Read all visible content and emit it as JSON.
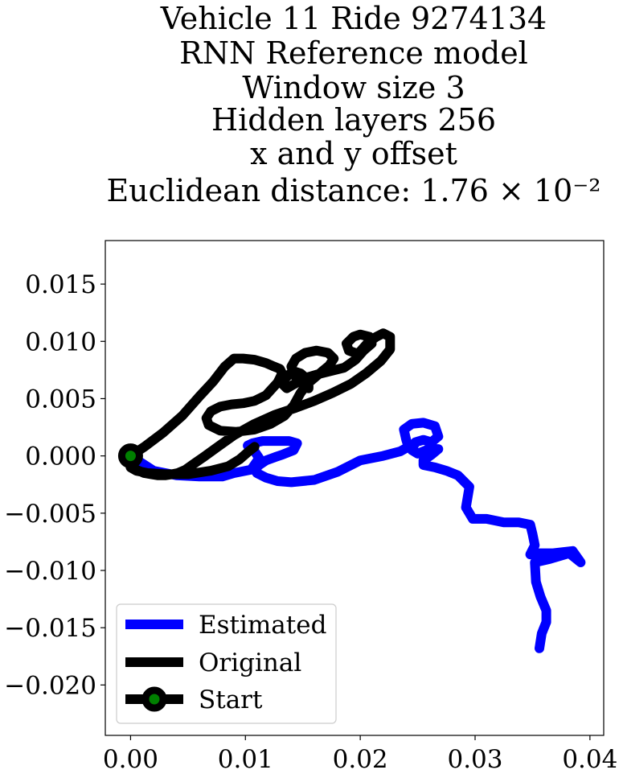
{
  "chart_data": {
    "type": "line",
    "title_lines": [
      "Vehicle 11 Ride 9274134",
      "RNN Reference model",
      "Window size 3",
      "Hidden layers 256",
      "x and y offset",
      "Euclidean distance: 1.76 × 10⁻²"
    ],
    "xlabel": "",
    "ylabel": "",
    "xlim": [
      -0.0022,
      0.0412
    ],
    "ylim": [
      -0.0244,
      0.0188
    ],
    "x_ticks": [
      0.0,
      0.01,
      0.02,
      0.03,
      0.04
    ],
    "x_tick_labels": [
      "0.00",
      "0.01",
      "0.02",
      "0.03",
      "0.04"
    ],
    "y_ticks": [
      0.015,
      0.01,
      0.005,
      0.0,
      -0.005,
      -0.01,
      -0.015,
      -0.02
    ],
    "y_tick_labels": [
      "0.015",
      "0.010",
      "0.005",
      "0.000",
      "−0.005",
      "−0.010",
      "−0.015",
      "−0.020"
    ],
    "grid": false,
    "legend_position": "lower-left",
    "legend": [
      "Estimated",
      "Original",
      "Start"
    ],
    "series": [
      {
        "name": "Estimated",
        "color": "#0000ff",
        "x": [
          0.0,
          0.002,
          0.004,
          0.006,
          0.008,
          0.009,
          0.0105,
          0.0112,
          0.0108,
          0.0102,
          0.0106,
          0.0115,
          0.0128,
          0.0138,
          0.0145,
          0.0142,
          0.0132,
          0.0126,
          0.0118,
          0.0112,
          0.0108,
          0.011,
          0.0118,
          0.0128,
          0.014,
          0.016,
          0.018,
          0.02,
          0.022,
          0.0235,
          0.0242,
          0.024,
          0.0238,
          0.0245,
          0.0255,
          0.0265,
          0.0268,
          0.0262,
          0.0255,
          0.0248,
          0.0245,
          0.025,
          0.026,
          0.0268,
          0.0262,
          0.0255,
          0.0255,
          0.0265,
          0.0275,
          0.0285,
          0.0295,
          0.0292,
          0.0298,
          0.031,
          0.0325,
          0.0338,
          0.0348,
          0.035,
          0.0352,
          0.0348,
          0.035,
          0.0368,
          0.0385,
          0.0392,
          0.0382,
          0.0365,
          0.0352,
          0.0353,
          0.0357,
          0.0362,
          0.0362,
          0.0358,
          0.0356
        ],
        "y": [
          0.0,
          -0.0013,
          -0.0017,
          -0.0018,
          -0.0018,
          -0.0015,
          -0.0012,
          -0.0002,
          0.0004,
          0.0009,
          0.0011,
          0.0013,
          0.0013,
          0.0013,
          0.0011,
          0.0005,
          0.0001,
          -0.0001,
          -0.0004,
          -0.0008,
          -0.0012,
          -0.0015,
          -0.0019,
          -0.0022,
          -0.0023,
          -0.0021,
          -0.0014,
          -0.0004,
          0.0,
          0.0004,
          0.0008,
          0.0014,
          0.0023,
          0.0028,
          0.0029,
          0.0026,
          0.0017,
          0.0012,
          0.0014,
          0.0012,
          0.0005,
          0.0002,
          0.0006,
          0.0006,
          0.0001,
          -0.0004,
          -0.0008,
          -0.001,
          -0.0013,
          -0.0017,
          -0.0027,
          -0.0045,
          -0.0055,
          -0.0055,
          -0.0058,
          -0.0058,
          -0.006,
          -0.0068,
          -0.0078,
          -0.0086,
          -0.0085,
          -0.0085,
          -0.0083,
          -0.0093,
          -0.0085,
          -0.009,
          -0.0093,
          -0.011,
          -0.0123,
          -0.0135,
          -0.0145,
          -0.0155,
          -0.0168
        ]
      },
      {
        "name": "Original",
        "color": "#000000",
        "x": [
          0.0,
          0.0012,
          0.0028,
          0.0045,
          0.006,
          0.0072,
          0.0082,
          0.009,
          0.0098,
          0.0108,
          0.0118,
          0.0125,
          0.013,
          0.0132,
          0.0128,
          0.0118,
          0.0108,
          0.0098,
          0.0088,
          0.0078,
          0.007,
          0.0066,
          0.0068,
          0.0078,
          0.0092,
          0.0108,
          0.0122,
          0.0134,
          0.0142,
          0.0148,
          0.0154,
          0.016,
          0.0167,
          0.0173,
          0.0177,
          0.0172,
          0.0162,
          0.0152,
          0.0144,
          0.014,
          0.0142,
          0.0148,
          0.0155,
          0.0155,
          0.0148,
          0.0142,
          0.0138,
          0.0134,
          0.0132,
          0.0136,
          0.0143,
          0.0152,
          0.0162,
          0.0174,
          0.0186,
          0.0196,
          0.0203,
          0.021,
          0.0208,
          0.02,
          0.0194,
          0.0188,
          0.019,
          0.0198,
          0.0206,
          0.0214,
          0.022,
          0.0226,
          0.0226,
          0.0218,
          0.0205,
          0.0192,
          0.0176,
          0.016,
          0.0144,
          0.0126,
          0.0108,
          0.009,
          0.0076,
          0.0065,
          0.0055,
          0.0048,
          0.0041,
          0.0036,
          0.003,
          0.0024,
          0.0018,
          0.0012,
          0.0007,
          0.0003,
          0.0,
          0.0005,
          0.0015,
          0.003,
          0.005,
          0.007,
          0.0085,
          0.0095,
          0.0103,
          0.0108
        ],
        "y": [
          0.0,
          0.0008,
          0.002,
          0.0035,
          0.0052,
          0.0065,
          0.0078,
          0.0085,
          0.0085,
          0.0084,
          0.0081,
          0.0078,
          0.0076,
          0.0072,
          0.0064,
          0.0053,
          0.0048,
          0.0046,
          0.0045,
          0.0043,
          0.0039,
          0.0033,
          0.0027,
          0.0022,
          0.0021,
          0.0023,
          0.0028,
          0.0035,
          0.0044,
          0.0055,
          0.0063,
          0.0068,
          0.0074,
          0.0079,
          0.0085,
          0.009,
          0.0092,
          0.009,
          0.0085,
          0.0078,
          0.0071,
          0.0064,
          0.0059,
          0.0066,
          0.0072,
          0.0074,
          0.0071,
          0.0067,
          0.0063,
          0.0059,
          0.0063,
          0.0068,
          0.0071,
          0.0074,
          0.0077,
          0.0084,
          0.0092,
          0.0098,
          0.0104,
          0.0106,
          0.0104,
          0.0098,
          0.0092,
          0.0089,
          0.0098,
          0.0104,
          0.0107,
          0.0104,
          0.0093,
          0.0083,
          0.0072,
          0.0063,
          0.0055,
          0.0048,
          0.0042,
          0.0036,
          0.0028,
          0.0018,
          0.0008,
          0.0,
          -0.0007,
          -0.0012,
          -0.0015,
          -0.0016,
          -0.0017,
          -0.0017,
          -0.0016,
          -0.0015,
          -0.0013,
          -0.0011,
          -0.001,
          -0.0013,
          -0.0015,
          -0.0016,
          -0.0016,
          -0.0013,
          -0.0009,
          -0.0003,
          0.0004,
          0.0008
        ]
      }
    ],
    "start_point": {
      "x": 0.0,
      "y": 0.0,
      "marker_color": "#008000",
      "edge_color": "#000000"
    }
  }
}
